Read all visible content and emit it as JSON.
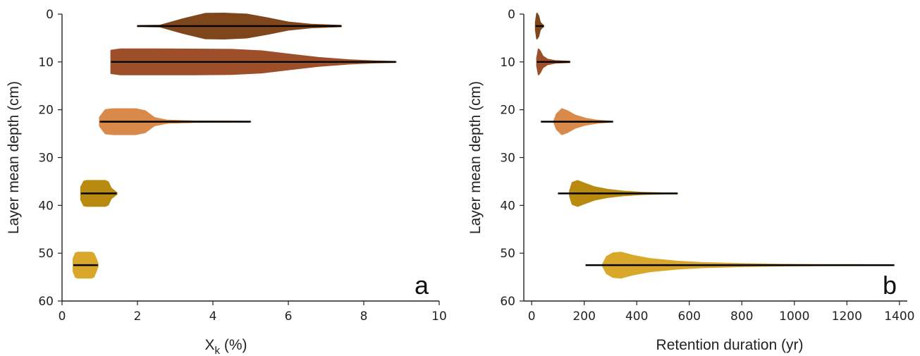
{
  "chart_data": [
    {
      "type": "violin",
      "panel_label": "a",
      "xlabel_main": "X",
      "xlabel_sub": "k",
      "xlabel_unit": " (%)",
      "ylabel": "Layer mean depth (cm)",
      "xlim": [
        0,
        10
      ],
      "ylim": [
        60,
        0
      ],
      "xticks": [
        0,
        2,
        4,
        6,
        8,
        10
      ],
      "yticks": [
        0,
        10,
        20,
        30,
        40,
        50,
        60
      ],
      "violins": [
        {
          "depth": 2.5,
          "min": 2.0,
          "max": 7.4,
          "color": "#80461b",
          "profile": [
            [
              2.0,
              0.02
            ],
            [
              2.6,
              0.05
            ],
            [
              3.2,
              0.55
            ],
            [
              3.8,
              0.98
            ],
            [
              4.3,
              1.0
            ],
            [
              4.9,
              0.92
            ],
            [
              5.5,
              0.6
            ],
            [
              6.0,
              0.3
            ],
            [
              6.6,
              0.12
            ],
            [
              7.4,
              0.03
            ]
          ]
        },
        {
          "depth": 10,
          "min": 1.3,
          "max": 8.85,
          "color": "#9e4f2a",
          "profile": [
            [
              1.3,
              0.9
            ],
            [
              1.55,
              1.0
            ],
            [
              2.5,
              1.0
            ],
            [
              3.5,
              0.99
            ],
            [
              4.5,
              0.97
            ],
            [
              5.3,
              0.85
            ],
            [
              6.0,
              0.6
            ],
            [
              6.8,
              0.33
            ],
            [
              7.6,
              0.15
            ],
            [
              8.3,
              0.06
            ],
            [
              8.85,
              0.02
            ]
          ]
        },
        {
          "depth": 22.5,
          "min": 1.0,
          "max": 5.0,
          "color": "#d98a4a",
          "profile": [
            [
              1.0,
              0.35
            ],
            [
              1.15,
              0.93
            ],
            [
              1.35,
              1.0
            ],
            [
              1.95,
              1.0
            ],
            [
              2.2,
              0.85
            ],
            [
              2.45,
              0.3
            ],
            [
              2.8,
              0.1
            ],
            [
              3.5,
              0.04
            ],
            [
              5.0,
              0.01
            ]
          ]
        },
        {
          "depth": 37.5,
          "min": 0.5,
          "max": 1.45,
          "color": "#b98a10",
          "profile": [
            [
              0.5,
              0.5
            ],
            [
              0.58,
              0.95
            ],
            [
              0.65,
              1.0
            ],
            [
              1.15,
              1.0
            ],
            [
              1.22,
              0.9
            ],
            [
              1.3,
              0.4
            ],
            [
              1.45,
              0.05
            ]
          ]
        },
        {
          "depth": 52.5,
          "min": 0.3,
          "max": 0.95,
          "color": "#d9a82a",
          "profile": [
            [
              0.3,
              0.5
            ],
            [
              0.36,
              0.95
            ],
            [
              0.42,
              1.0
            ],
            [
              0.78,
              1.0
            ],
            [
              0.84,
              0.92
            ],
            [
              0.9,
              0.5
            ],
            [
              0.95,
              0.1
            ]
          ]
        }
      ]
    },
    {
      "type": "violin",
      "panel_label": "b",
      "xlabel": "Retention duration (yr)",
      "ylabel": "Layer mean depth (cm)",
      "xlim": [
        -30,
        1430
      ],
      "ylim": [
        60,
        0
      ],
      "xticks": [
        0,
        200,
        400,
        600,
        800,
        1000,
        1200,
        1400
      ],
      "yticks": [
        0,
        10,
        20,
        30,
        40,
        50,
        60
      ],
      "violins": [
        {
          "depth": 2.5,
          "min": 15,
          "max": 45,
          "color": "#80461b",
          "profile": [
            [
              15,
              0.3
            ],
            [
              20,
              1.0
            ],
            [
              26,
              0.8
            ],
            [
              32,
              0.3
            ],
            [
              40,
              0.1
            ],
            [
              45,
              0.05
            ]
          ]
        },
        {
          "depth": 10,
          "min": 20,
          "max": 145,
          "color": "#9e4f2a",
          "profile": [
            [
              20,
              0.3
            ],
            [
              26,
              1.0
            ],
            [
              32,
              0.85
            ],
            [
              42,
              0.45
            ],
            [
              60,
              0.2
            ],
            [
              90,
              0.08
            ],
            [
              145,
              0.03
            ]
          ]
        },
        {
          "depth": 22.5,
          "min": 35,
          "max": 310,
          "color": "#d98a4a",
          "profile": [
            [
              85,
              0.05
            ],
            [
              95,
              0.6
            ],
            [
              115,
              1.0
            ],
            [
              135,
              0.85
            ],
            [
              165,
              0.5
            ],
            [
              205,
              0.25
            ],
            [
              250,
              0.1
            ],
            [
              300,
              0.02
            ]
          ]
        },
        {
          "depth": 37.5,
          "min": 100,
          "max": 555,
          "color": "#b98a10",
          "profile": [
            [
              145,
              0.2
            ],
            [
              155,
              0.85
            ],
            [
              175,
              1.0
            ],
            [
              200,
              0.8
            ],
            [
              240,
              0.5
            ],
            [
              290,
              0.3
            ],
            [
              350,
              0.16
            ],
            [
              420,
              0.07
            ],
            [
              500,
              0.02
            ],
            [
              555,
              0.01
            ]
          ]
        },
        {
          "depth": 52.5,
          "min": 205,
          "max": 1380,
          "color": "#d9a82a",
          "profile": [
            [
              270,
              0.05
            ],
            [
              285,
              0.65
            ],
            [
              310,
              0.95
            ],
            [
              340,
              1.0
            ],
            [
              385,
              0.75
            ],
            [
              450,
              0.5
            ],
            [
              550,
              0.3
            ],
            [
              650,
              0.18
            ],
            [
              800,
              0.1
            ],
            [
              950,
              0.05
            ],
            [
              1100,
              0.02
            ],
            [
              1250,
              0.01
            ],
            [
              1380,
              0.005
            ]
          ]
        }
      ]
    }
  ]
}
